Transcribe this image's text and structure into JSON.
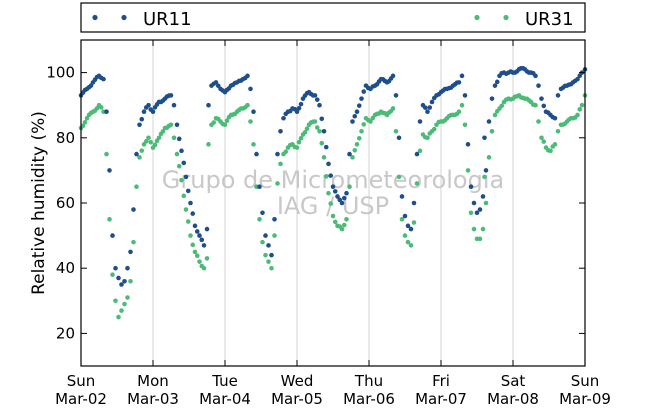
{
  "chart_data": {
    "type": "scatter",
    "title": "",
    "xlabel": "",
    "ylabel": "Relative humidity (%)",
    "ylim": [
      10,
      110
    ],
    "yticks": [
      20,
      40,
      60,
      80,
      100
    ],
    "xlim": [
      "2025-03-02 00:00",
      "2025-03-09 00:00"
    ],
    "xticks": [
      {
        "line1": "Sun",
        "line2": "Mar-02"
      },
      {
        "line1": "Mon",
        "line2": "Mar-03"
      },
      {
        "line1": "Tue",
        "line2": "Mar-04"
      },
      {
        "line1": "Wed",
        "line2": "Mar-05"
      },
      {
        "line1": "Thu",
        "line2": "Mar-06"
      },
      {
        "line1": "Fri",
        "line2": "Mar-07"
      },
      {
        "line1": "Sat",
        "line2": "Mar-08"
      },
      {
        "line1": "Sun",
        "line2": "Mar-09"
      }
    ],
    "grid": "vertical",
    "legend_placement": "top, outside plot",
    "watermark": [
      "Grupo de Micrometeorologia",
      "IAG / USP"
    ],
    "series": [
      {
        "name": "UR11",
        "color": "#1f4e8c",
        "points": [
          [
            "2025-03-02 00:00",
            93
          ],
          [
            "2025-03-02 02:00",
            95
          ],
          [
            "2025-03-02 04:00",
            97
          ],
          [
            "2025-03-02 06:00",
            99
          ],
          [
            "2025-03-02 07:30",
            98
          ],
          [
            "2025-03-02 08:30",
            88
          ],
          [
            "2025-03-02 09:30",
            70
          ],
          [
            "2025-03-02 10:30",
            50
          ],
          [
            "2025-03-02 11:30",
            40
          ],
          [
            "2025-03-02 12:30",
            37
          ],
          [
            "2025-03-02 13:30",
            35
          ],
          [
            "2025-03-02 14:30",
            36
          ],
          [
            "2025-03-02 15:30",
            40
          ],
          [
            "2025-03-02 16:30",
            45
          ],
          [
            "2025-03-02 17:30",
            58
          ],
          [
            "2025-03-02 18:30",
            75
          ],
          [
            "2025-03-02 19:30",
            84
          ],
          [
            "2025-03-02 21:00",
            88
          ],
          [
            "2025-03-02 22:30",
            90
          ],
          [
            "2025-03-03 00:00",
            88
          ],
          [
            "2025-03-03 02:00",
            91
          ],
          [
            "2025-03-03 04:00",
            92
          ],
          [
            "2025-03-03 06:00",
            93
          ],
          [
            "2025-03-03 07:00",
            90
          ],
          [
            "2025-03-03 08:00",
            84
          ],
          [
            "2025-03-03 09:30",
            76
          ],
          [
            "2025-03-03 11:00",
            68
          ],
          [
            "2025-03-03 12:30",
            60
          ],
          [
            "2025-03-03 14:00",
            53
          ],
          [
            "2025-03-03 15:30",
            50
          ],
          [
            "2025-03-03 17:00",
            47
          ],
          [
            "2025-03-03 18:00",
            52
          ],
          [
            "2025-03-03 18:30",
            90
          ],
          [
            "2025-03-03 19:30",
            96
          ],
          [
            "2025-03-03 21:00",
            97
          ],
          [
            "2025-03-03 22:30",
            95
          ],
          [
            "2025-03-04 00:00",
            94
          ],
          [
            "2025-03-04 02:00",
            96
          ],
          [
            "2025-03-04 04:00",
            97
          ],
          [
            "2025-03-04 06:00",
            98
          ],
          [
            "2025-03-04 07:30",
            99
          ],
          [
            "2025-03-04 08:30",
            95
          ],
          [
            "2025-03-04 09:30",
            88
          ],
          [
            "2025-03-04 10:30",
            75
          ],
          [
            "2025-03-04 11:30",
            65
          ],
          [
            "2025-03-04 12:30",
            57
          ],
          [
            "2025-03-04 13:30",
            50
          ],
          [
            "2025-03-04 14:30",
            47
          ],
          [
            "2025-03-04 15:30",
            44
          ],
          [
            "2025-03-04 16:30",
            55
          ],
          [
            "2025-03-04 17:30",
            75
          ],
          [
            "2025-03-04 18:30",
            82
          ],
          [
            "2025-03-04 19:30",
            86
          ],
          [
            "2025-03-04 21:00",
            88
          ],
          [
            "2025-03-04 22:30",
            89
          ],
          [
            "2025-03-05 00:00",
            88
          ],
          [
            "2025-03-05 02:00",
            92
          ],
          [
            "2025-03-05 04:00",
            94
          ],
          [
            "2025-03-05 06:00",
            93
          ],
          [
            "2025-03-05 07:30",
            90
          ],
          [
            "2025-03-05 09:00",
            82
          ],
          [
            "2025-03-05 10:30",
            72
          ],
          [
            "2025-03-05 12:00",
            65
          ],
          [
            "2025-03-05 13:30",
            62
          ],
          [
            "2025-03-05 15:00",
            60
          ],
          [
            "2025-03-05 16:30",
            63
          ],
          [
            "2025-03-05 17:30",
            75
          ],
          [
            "2025-03-05 18:30",
            85
          ],
          [
            "2025-03-05 20:00",
            88
          ],
          [
            "2025-03-05 21:30",
            92
          ],
          [
            "2025-03-05 23:00",
            96
          ],
          [
            "2025-03-06 00:30",
            95
          ],
          [
            "2025-03-06 02:00",
            96
          ],
          [
            "2025-03-06 04:00",
            98
          ],
          [
            "2025-03-06 06:00",
            97
          ],
          [
            "2025-03-06 08:00",
            99
          ],
          [
            "2025-03-06 09:00",
            93
          ],
          [
            "2025-03-06 10:00",
            80
          ],
          [
            "2025-03-06 11:00",
            62
          ],
          [
            "2025-03-06 12:00",
            56
          ],
          [
            "2025-03-06 13:00",
            53
          ],
          [
            "2025-03-06 14:00",
            52
          ],
          [
            "2025-03-06 15:00",
            60
          ],
          [
            "2025-03-06 16:00",
            75
          ],
          [
            "2025-03-06 17:00",
            85
          ],
          [
            "2025-03-06 18:00",
            90
          ],
          [
            "2025-03-06 19:30",
            88
          ],
          [
            "2025-03-06 21:00",
            91
          ],
          [
            "2025-03-06 22:30",
            93
          ],
          [
            "2025-03-07 00:00",
            94
          ],
          [
            "2025-03-07 02:00",
            95
          ],
          [
            "2025-03-07 04:00",
            96
          ],
          [
            "2025-03-07 06:00",
            97
          ],
          [
            "2025-03-07 07:00",
            99
          ],
          [
            "2025-03-07 08:00",
            93
          ],
          [
            "2025-03-07 09:00",
            78
          ],
          [
            "2025-03-07 10:00",
            65
          ],
          [
            "2025-03-07 11:00",
            60
          ],
          [
            "2025-03-07 12:00",
            57
          ],
          [
            "2025-03-07 13:00",
            58
          ],
          [
            "2025-03-07 14:00",
            62
          ],
          [
            "2025-03-07 14:30",
            80
          ],
          [
            "2025-03-07 15:00",
            70
          ],
          [
            "2025-03-07 16:00",
            85
          ],
          [
            "2025-03-07 17:00",
            92
          ],
          [
            "2025-03-07 18:00",
            96
          ],
          [
            "2025-03-07 19:30",
            99
          ],
          [
            "2025-03-07 21:00",
            100
          ],
          [
            "2025-03-07 22:30",
            100
          ],
          [
            "2025-03-08 00:00",
            100
          ],
          [
            "2025-03-08 02:00",
            101
          ],
          [
            "2025-03-08 04:00",
            101
          ],
          [
            "2025-03-08 06:00",
            100
          ],
          [
            "2025-03-08 07:30",
            99
          ],
          [
            "2025-03-08 08:30",
            96
          ],
          [
            "2025-03-08 09:30",
            92
          ],
          [
            "2025-03-08 11:00",
            88
          ],
          [
            "2025-03-08 12:30",
            87
          ],
          [
            "2025-03-08 14:00",
            86
          ],
          [
            "2025-03-08 15:00",
            93
          ],
          [
            "2025-03-08 16:00",
            95
          ],
          [
            "2025-03-08 18:00",
            96
          ],
          [
            "2025-03-08 20:00",
            97
          ],
          [
            "2025-03-08 21:30",
            98
          ],
          [
            "2025-03-08 23:00",
            100
          ],
          [
            "2025-03-09 00:00",
            101
          ]
        ]
      },
      {
        "name": "UR31",
        "color": "#4dbb78",
        "points": [
          [
            "2025-03-02 00:00",
            83
          ],
          [
            "2025-03-02 02:00",
            86
          ],
          [
            "2025-03-02 04:00",
            88
          ],
          [
            "2025-03-02 06:00",
            90
          ],
          [
            "2025-03-02 07:30",
            88
          ],
          [
            "2025-03-02 08:30",
            75
          ],
          [
            "2025-03-02 09:30",
            55
          ],
          [
            "2025-03-02 10:30",
            38
          ],
          [
            "2025-03-02 11:30",
            30
          ],
          [
            "2025-03-02 12:30",
            25
          ],
          [
            "2025-03-02 13:30",
            27
          ],
          [
            "2025-03-02 14:30",
            29
          ],
          [
            "2025-03-02 15:30",
            31
          ],
          [
            "2025-03-02 16:30",
            36
          ],
          [
            "2025-03-02 17:30",
            48
          ],
          [
            "2025-03-02 18:30",
            65
          ],
          [
            "2025-03-02 19:30",
            74
          ],
          [
            "2025-03-02 21:00",
            78
          ],
          [
            "2025-03-02 22:30",
            80
          ],
          [
            "2025-03-03 00:00",
            77
          ],
          [
            "2025-03-03 02:00",
            80
          ],
          [
            "2025-03-03 04:00",
            83
          ],
          [
            "2025-03-03 06:00",
            84
          ],
          [
            "2025-03-03 07:00",
            80
          ],
          [
            "2025-03-03 08:00",
            75
          ],
          [
            "2025-03-03 09:30",
            67
          ],
          [
            "2025-03-03 11:00",
            58
          ],
          [
            "2025-03-03 12:30",
            50
          ],
          [
            "2025-03-03 14:00",
            45
          ],
          [
            "2025-03-03 15:30",
            42
          ],
          [
            "2025-03-03 17:00",
            40
          ],
          [
            "2025-03-03 18:00",
            43
          ],
          [
            "2025-03-03 18:30",
            78
          ],
          [
            "2025-03-03 19:30",
            84
          ],
          [
            "2025-03-03 21:00",
            86
          ],
          [
            "2025-03-03 22:30",
            85
          ],
          [
            "2025-03-04 00:00",
            84
          ],
          [
            "2025-03-04 02:00",
            87
          ],
          [
            "2025-03-04 04:00",
            88
          ],
          [
            "2025-03-04 06:00",
            89
          ],
          [
            "2025-03-04 07:30",
            90
          ],
          [
            "2025-03-04 08:30",
            85
          ],
          [
            "2025-03-04 09:30",
            78
          ],
          [
            "2025-03-04 10:30",
            65
          ],
          [
            "2025-03-04 11:30",
            55
          ],
          [
            "2025-03-04 12:30",
            48
          ],
          [
            "2025-03-04 13:30",
            44
          ],
          [
            "2025-03-04 14:30",
            42
          ],
          [
            "2025-03-04 15:30",
            40
          ],
          [
            "2025-03-04 16:30",
            50
          ],
          [
            "2025-03-04 17:30",
            66
          ],
          [
            "2025-03-04 18:30",
            72
          ],
          [
            "2025-03-04 19:30",
            75
          ],
          [
            "2025-03-04 21:00",
            77
          ],
          [
            "2025-03-04 22:30",
            78
          ],
          [
            "2025-03-05 00:00",
            77
          ],
          [
            "2025-03-05 02:00",
            81
          ],
          [
            "2025-03-05 04:00",
            84
          ],
          [
            "2025-03-05 06:00",
            85
          ],
          [
            "2025-03-05 07:30",
            82
          ],
          [
            "2025-03-05 09:00",
            74
          ],
          [
            "2025-03-05 10:30",
            63
          ],
          [
            "2025-03-05 12:00",
            56
          ],
          [
            "2025-03-05 13:30",
            53
          ],
          [
            "2025-03-05 15:00",
            52
          ],
          [
            "2025-03-05 16:30",
            55
          ],
          [
            "2025-03-05 17:30",
            65
          ],
          [
            "2025-03-05 18:30",
            74
          ],
          [
            "2025-03-05 20:00",
            78
          ],
          [
            "2025-03-05 21:30",
            82
          ],
          [
            "2025-03-05 23:00",
            86
          ],
          [
            "2025-03-06 00:30",
            85
          ],
          [
            "2025-03-06 02:00",
            87
          ],
          [
            "2025-03-06 04:00",
            88
          ],
          [
            "2025-03-06 06:00",
            87
          ],
          [
            "2025-03-06 08:00",
            89
          ],
          [
            "2025-03-06 09:00",
            82
          ],
          [
            "2025-03-06 10:00",
            68
          ],
          [
            "2025-03-06 11:00",
            55
          ],
          [
            "2025-03-06 12:00",
            50
          ],
          [
            "2025-03-06 13:00",
            48
          ],
          [
            "2025-03-06 14:00",
            47
          ],
          [
            "2025-03-06 15:00",
            54
          ],
          [
            "2025-03-06 16:00",
            66
          ],
          [
            "2025-03-06 17:00",
            76
          ],
          [
            "2025-03-06 18:00",
            81
          ],
          [
            "2025-03-06 19:30",
            80
          ],
          [
            "2025-03-06 21:00",
            82
          ],
          [
            "2025-03-06 22:30",
            84
          ],
          [
            "2025-03-07 00:00",
            85
          ],
          [
            "2025-03-07 02:00",
            86
          ],
          [
            "2025-03-07 04:00",
            87
          ],
          [
            "2025-03-07 06:00",
            88
          ],
          [
            "2025-03-07 07:00",
            90
          ],
          [
            "2025-03-07 08:00",
            84
          ],
          [
            "2025-03-07 09:00",
            70
          ],
          [
            "2025-03-07 10:00",
            57
          ],
          [
            "2025-03-07 11:00",
            52
          ],
          [
            "2025-03-07 12:00",
            49
          ],
          [
            "2025-03-07 13:00",
            49
          ],
          [
            "2025-03-07 14:00",
            52
          ],
          [
            "2025-03-07 14:30",
            68
          ],
          [
            "2025-03-07 15:00",
            60
          ],
          [
            "2025-03-07 16:00",
            74
          ],
          [
            "2025-03-07 17:00",
            82
          ],
          [
            "2025-03-07 18:00",
            87
          ],
          [
            "2025-03-07 19:30",
            89
          ],
          [
            "2025-03-07 21:00",
            91
          ],
          [
            "2025-03-07 22:30",
            92
          ],
          [
            "2025-03-08 00:00",
            92
          ],
          [
            "2025-03-08 02:00",
            93
          ],
          [
            "2025-03-08 04:00",
            92
          ],
          [
            "2025-03-08 06:00",
            91
          ],
          [
            "2025-03-08 07:30",
            90
          ],
          [
            "2025-03-08 08:30",
            85
          ],
          [
            "2025-03-08 09:30",
            80
          ],
          [
            "2025-03-08 11:00",
            77
          ],
          [
            "2025-03-08 12:30",
            76
          ],
          [
            "2025-03-08 14:00",
            78
          ],
          [
            "2025-03-08 15:00",
            82
          ],
          [
            "2025-03-08 16:00",
            84
          ],
          [
            "2025-03-08 18:00",
            85
          ],
          [
            "2025-03-08 20:00",
            86
          ],
          [
            "2025-03-08 21:30",
            87
          ],
          [
            "2025-03-08 23:00",
            90
          ],
          [
            "2025-03-09 00:00",
            93
          ]
        ]
      }
    ]
  }
}
